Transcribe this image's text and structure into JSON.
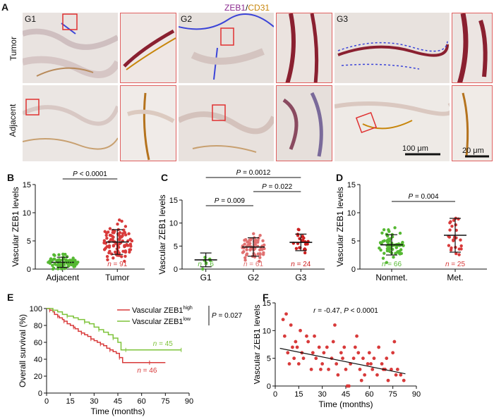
{
  "panel_labels": {
    "a": "A",
    "b": "B",
    "c": "C",
    "d": "D",
    "e": "E",
    "f": "F"
  },
  "panel_a": {
    "header_zeb1": "ZEB1",
    "header_sep": "/",
    "header_cd31": "CD31",
    "groups": [
      "G1",
      "G2",
      "G3"
    ],
    "rows": [
      "Tumor",
      "Adjacent"
    ],
    "scale_100": "100 μm",
    "scale_20": "20 μm",
    "colors": {
      "zeb1": "#8b2a8f",
      "cd31": "#c8860b",
      "frame": "#e03030"
    }
  },
  "chart_data": [
    {
      "id": "B",
      "type": "scatter",
      "ylabel": "Vascular ZEB1 levels",
      "ylim": [
        0,
        15
      ],
      "yticks": [
        0,
        5,
        10,
        15
      ],
      "categories": [
        "Adjacent",
        "Tumor"
      ],
      "n_labels": [
        "n = 88",
        "n = 91"
      ],
      "colors": [
        "#55b832",
        "#d83a3a"
      ],
      "means": [
        1.2,
        4.8
      ],
      "sd": [
        0.9,
        2.2
      ],
      "pvalues": [
        {
          "text": "P < 0.0001",
          "from": 0,
          "to": 1
        }
      ]
    },
    {
      "id": "C",
      "type": "scatter",
      "ylabel": "Vascular ZEB1 levels",
      "ylim": [
        0,
        15
      ],
      "yticks": [
        0,
        5,
        10,
        15
      ],
      "categories": [
        "G1",
        "G2",
        "G3"
      ],
      "n_labels": [
        "n = 6",
        "n = 61",
        "n = 24"
      ],
      "colors": [
        "#55b832",
        "#e07070",
        "#cc1f1f"
      ],
      "means": [
        2,
        4.8,
        5.8
      ],
      "sd": [
        1.5,
        2,
        1.8
      ],
      "pvalues": [
        {
          "text": "P = 0.0012",
          "from": 0,
          "to": 2
        },
        {
          "text": "P = 0.022",
          "from": 1,
          "to": 2
        },
        {
          "text": "P = 0.009",
          "from": 0,
          "to": 1
        }
      ]
    },
    {
      "id": "D",
      "type": "scatter",
      "ylabel": "Vascular ZEB1 levels",
      "ylim": [
        0,
        15
      ],
      "yticks": [
        0,
        5,
        10,
        15
      ],
      "categories": [
        "Nonmet.",
        "Met."
      ],
      "n_labels": [
        "n = 66",
        "n = 25"
      ],
      "colors": [
        "#55b832",
        "#d83a3a"
      ],
      "means": [
        4.3,
        6
      ],
      "sd": [
        1.8,
        3
      ],
      "pvalues": [
        {
          "text": "P = 0.004",
          "from": 0,
          "to": 1
        }
      ]
    },
    {
      "id": "E",
      "type": "line",
      "ylabel": "Overall survival (%)",
      "xlabel": "Time (months)",
      "xlim": [
        0,
        90
      ],
      "ylim": [
        0,
        100
      ],
      "xticks": [
        0,
        15,
        30,
        45,
        60,
        75,
        90
      ],
      "yticks": [
        0,
        20,
        40,
        60,
        80,
        100
      ],
      "legend_prefix": "Vascular ZEB1",
      "series": [
        {
          "name": "high",
          "color": "#d83a3a",
          "n_label": "n = 46",
          "x": [
            0,
            2,
            4,
            5,
            7,
            8,
            10,
            11,
            13,
            15,
            17,
            18,
            20,
            22,
            24,
            26,
            28,
            30,
            32,
            34,
            36,
            38,
            40,
            42,
            44,
            46,
            48,
            55,
            65,
            75
          ],
          "y": [
            100,
            98,
            96,
            93,
            91,
            89,
            87,
            85,
            82,
            80,
            78,
            76,
            73,
            71,
            69,
            67,
            64,
            62,
            60,
            58,
            56,
            53,
            51,
            49,
            47,
            42,
            36,
            36,
            36,
            36
          ]
        },
        {
          "name": "low",
          "color": "#7ec33a",
          "n_label": "n = 45",
          "x": [
            0,
            4,
            7,
            10,
            13,
            17,
            20,
            24,
            27,
            30,
            33,
            36,
            39,
            42,
            45,
            47,
            50,
            60,
            75,
            85
          ],
          "y": [
            100,
            98,
            96,
            93,
            91,
            89,
            87,
            84,
            82,
            78,
            75,
            72,
            69,
            65,
            60,
            51,
            51,
            51,
            51,
            51
          ]
        }
      ],
      "pvalue": "P = 0.027"
    },
    {
      "id": "F",
      "type": "scatter",
      "ylabel": "Vascular ZEB1 levels",
      "xlabel": "Time (months)",
      "xlim": [
        0,
        90
      ],
      "ylim": [
        0,
        15
      ],
      "xticks": [
        0,
        15,
        30,
        45,
        60,
        75,
        90
      ],
      "yticks": [
        0,
        5,
        10,
        15
      ],
      "annotation": "r = -0.47, P < 0.0001",
      "fit": {
        "x": [
          3,
          83
        ],
        "y": [
          6.8,
          2.2
        ]
      },
      "color": "#d83a3a",
      "points": [
        [
          5,
          12
        ],
        [
          6,
          9
        ],
        [
          7,
          13
        ],
        [
          8,
          6
        ],
        [
          9,
          4
        ],
        [
          10,
          11
        ],
        [
          11,
          7
        ],
        [
          12,
          5
        ],
        [
          13,
          8
        ],
        [
          14,
          7
        ],
        [
          16,
          10
        ],
        [
          17,
          6
        ],
        [
          18,
          5
        ],
        [
          20,
          9
        ],
        [
          21,
          8
        ],
        [
          23,
          3
        ],
        [
          24,
          6
        ],
        [
          26,
          5
        ],
        [
          28,
          7
        ],
        [
          29,
          3
        ],
        [
          30,
          4
        ],
        [
          31,
          6
        ],
        [
          33,
          7
        ],
        [
          34,
          3
        ],
        [
          36,
          5
        ],
        [
          37,
          8
        ],
        [
          39,
          4
        ],
        [
          40,
          2
        ],
        [
          42,
          6
        ],
        [
          43,
          5
        ],
        [
          45,
          3
        ],
        [
          46,
          0
        ],
        [
          47,
          0
        ],
        [
          48,
          4
        ],
        [
          50,
          5
        ],
        [
          51,
          7
        ],
        [
          53,
          6
        ],
        [
          54,
          3
        ],
        [
          56,
          5
        ],
        [
          57,
          2
        ],
        [
          59,
          4
        ],
        [
          60,
          6
        ],
        [
          62,
          3
        ],
        [
          63,
          5
        ],
        [
          65,
          2
        ],
        [
          66,
          7
        ],
        [
          68,
          4
        ],
        [
          69,
          3
        ],
        [
          71,
          5
        ],
        [
          72,
          1
        ],
        [
          74,
          3
        ],
        [
          75,
          6
        ],
        [
          77,
          2
        ],
        [
          78,
          3
        ],
        [
          80,
          2
        ],
        [
          82,
          1
        ],
        [
          38,
          11
        ],
        [
          44,
          7
        ],
        [
          52,
          9
        ],
        [
          61,
          4
        ],
        [
          70,
          3
        ],
        [
          76,
          8
        ],
        [
          55,
          1
        ],
        [
          25,
          9
        ],
        [
          15,
          4
        ]
      ]
    }
  ]
}
